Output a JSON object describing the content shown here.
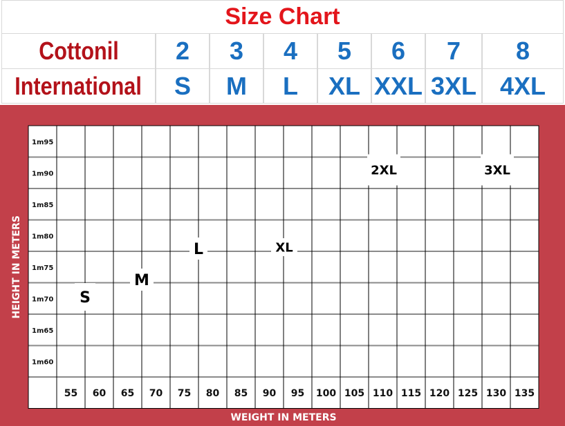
{
  "chart_data": {
    "type": "table",
    "title": "Size Chart",
    "size_table": {
      "rows": [
        {
          "label": "Cottonil",
          "values": [
            "2",
            "3",
            "4",
            "5",
            "6",
            "7",
            "8"
          ]
        },
        {
          "label": "International",
          "values": [
            "S",
            "M",
            "L",
            "XL",
            "XXL",
            "3XL",
            "4XL"
          ]
        }
      ]
    },
    "ylabel": "HEIGHT IN METERS",
    "xlabel": "WEIGHT IN METERS",
    "y_ticks": [
      "1m95",
      "1m90",
      "1m85",
      "1m80",
      "1m75",
      "1m70",
      "1m65",
      "1m60"
    ],
    "x_ticks": [
      "55",
      "60",
      "65",
      "70",
      "75",
      "80",
      "85",
      "90",
      "95",
      "100",
      "105",
      "110",
      "115",
      "120",
      "125",
      "130",
      "135"
    ],
    "size_markers": [
      "S",
      "M",
      "L",
      "XL",
      "2XL",
      "3XL"
    ],
    "colors": {
      "title": "#e3151b",
      "brand": "#b3121a",
      "size": "#1a6fc0",
      "frame": "#c2404a"
    }
  }
}
